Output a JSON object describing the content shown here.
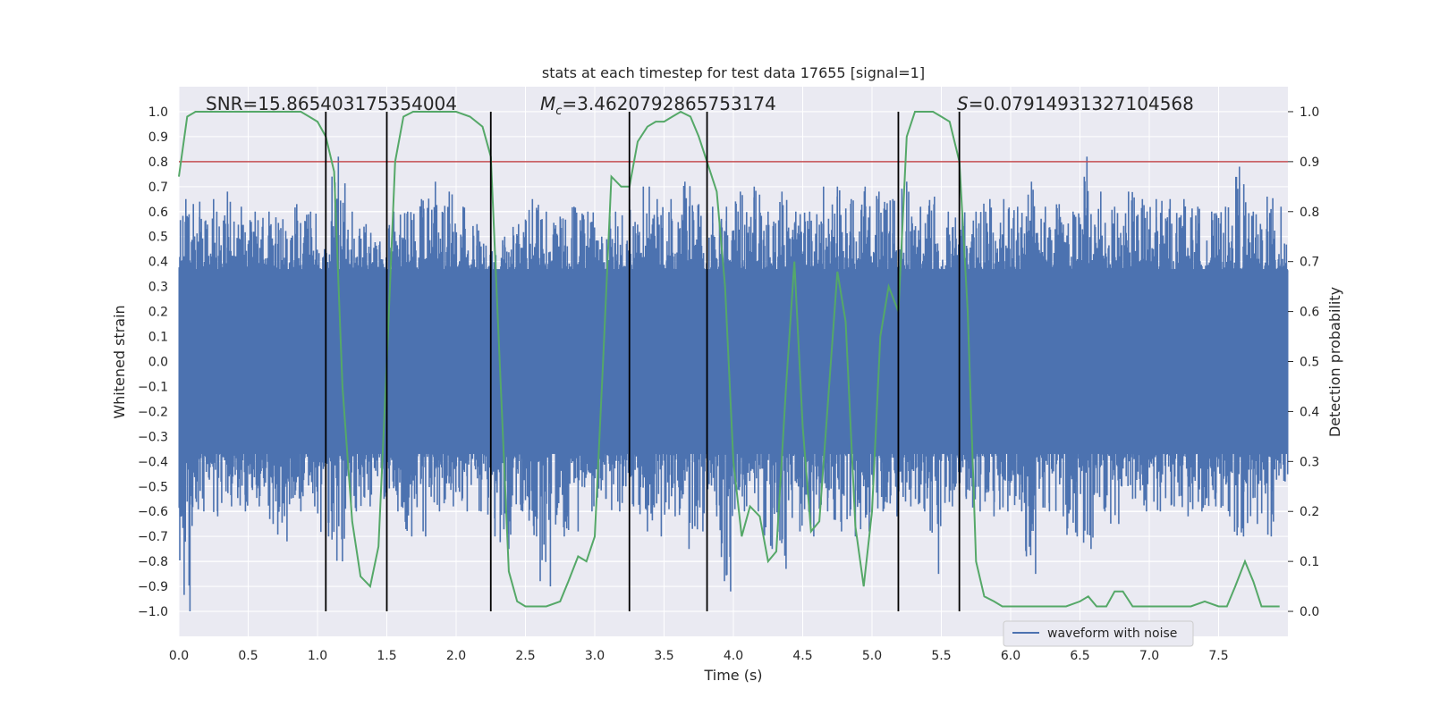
{
  "chart_data": {
    "type": "line",
    "title": "stats at each timestep for test data 17655 [signal=1]",
    "xlabel": "Time (s)",
    "ylabel": "Whitened strain",
    "y2label": "Detection probability",
    "xlim": [
      0,
      8
    ],
    "ylim": [
      -1.1,
      1.1
    ],
    "y2lim": [
      -0.05,
      1.05
    ],
    "xticks": [
      0.0,
      0.5,
      1.0,
      1.5,
      2.0,
      2.5,
      3.0,
      3.5,
      4.0,
      4.5,
      5.0,
      5.5,
      6.0,
      6.5,
      7.0,
      7.5
    ],
    "yticks": [
      -1.0,
      -0.9,
      -0.8,
      -0.7,
      -0.6,
      -0.5,
      -0.4,
      -0.3,
      -0.2,
      -0.1,
      0.0,
      0.1,
      0.2,
      0.3,
      0.4,
      0.5,
      0.6,
      0.7,
      0.8,
      0.9,
      1.0
    ],
    "y2ticks": [
      0.0,
      0.1,
      0.2,
      0.3,
      0.4,
      0.5,
      0.6,
      0.7,
      0.8,
      0.9,
      1.0
    ],
    "grid": true,
    "annotations": {
      "snr": "SNR=15.865403175354004",
      "mc_symbol": "M",
      "mc_sub": "c",
      "mc_value": "=3.4620792865753174",
      "s_symbol": "S",
      "s_value": "=0.07914931327104568"
    },
    "threshold": {
      "value": 0.9,
      "axis": "y2",
      "color": "#c44e52"
    },
    "vlines": [
      1.06,
      1.5,
      2.25,
      3.25,
      3.81,
      5.19,
      5.63
    ],
    "legend": {
      "label": "waveform with noise",
      "placement": "lower-right"
    },
    "series": [
      {
        "name": "waveform with noise",
        "axis": "y",
        "color": "#4c72b0",
        "band_max": [
          0.65,
          0.64,
          0.65,
          0.68,
          0.62,
          0.6,
          0.6,
          0.57,
          0.63,
          0.6,
          0.45,
          0.82,
          0.6,
          0.55,
          0.48,
          0.6,
          0.6,
          0.65,
          0.72,
          0.68,
          0.62,
          0.55,
          0.5,
          0.5,
          0.55,
          0.65,
          0.6,
          0.58,
          0.62,
          0.6,
          0.5,
          0.6,
          0.65,
          0.7,
          0.65,
          0.65,
          0.72,
          0.63,
          0.62,
          0.62,
          0.68,
          0.7,
          0.6,
          0.68,
          0.6,
          0.6,
          0.7,
          0.7,
          0.65,
          0.7,
          0.68,
          0.65,
          0.72,
          0.62,
          0.66,
          0.6,
          0.6,
          0.6,
          0.65,
          0.65,
          0.62,
          0.72,
          0.62,
          0.63,
          0.6,
          0.82,
          0.68,
          0.62,
          0.68,
          0.65,
          0.65,
          0.65,
          0.65,
          0.62,
          0.6,
          0.62,
          0.78,
          0.6,
          0.66,
          0.62
        ],
        "band_min": [
          -1.0,
          -0.6,
          -0.62,
          -0.58,
          -0.6,
          -0.58,
          -0.65,
          -0.72,
          -0.6,
          -0.58,
          -0.7,
          -0.8,
          -0.6,
          -0.58,
          -0.55,
          -0.6,
          -0.7,
          -0.7,
          -0.6,
          -0.58,
          -0.6,
          -0.6,
          -0.7,
          -0.75,
          -0.6,
          -0.7,
          -0.9,
          -0.7,
          -0.68,
          -0.6,
          -0.55,
          -0.6,
          -0.58,
          -0.68,
          -0.7,
          -0.62,
          -0.75,
          -0.68,
          -0.62,
          -0.92,
          -0.6,
          -0.6,
          -0.75,
          -0.83,
          -0.68,
          -0.7,
          -0.6,
          -0.68,
          -0.7,
          -0.68,
          -0.6,
          -0.62,
          -0.58,
          -0.6,
          -0.85,
          -0.58,
          -0.55,
          -0.6,
          -0.62,
          -0.6,
          -0.6,
          -0.85,
          -0.6,
          -0.62,
          -0.7,
          -0.75,
          -0.6,
          -0.65,
          -0.55,
          -0.6,
          -0.6,
          -0.58,
          -0.62,
          -0.6,
          -0.58,
          -0.62,
          -0.7,
          -0.65,
          -0.7,
          -0.48
        ]
      },
      {
        "name": "",
        "axis": "y2",
        "color": "#55a868",
        "x": [
          0.0,
          0.06,
          0.12,
          0.2,
          0.4,
          0.6,
          0.8,
          0.88,
          0.94,
          1.0,
          1.06,
          1.12,
          1.18,
          1.25,
          1.31,
          1.38,
          1.44,
          1.5,
          1.56,
          1.62,
          1.69,
          1.75,
          1.81,
          1.9,
          2.0,
          2.1,
          2.19,
          2.25,
          2.31,
          2.38,
          2.44,
          2.5,
          2.56,
          2.65,
          2.75,
          2.81,
          2.88,
          2.94,
          3.0,
          3.06,
          3.12,
          3.19,
          3.25,
          3.31,
          3.38,
          3.44,
          3.5,
          3.56,
          3.62,
          3.69,
          3.75,
          3.81,
          3.88,
          3.94,
          4.0,
          4.06,
          4.12,
          4.19,
          4.25,
          4.31,
          4.38,
          4.44,
          4.5,
          4.56,
          4.62,
          4.69,
          4.75,
          4.81,
          4.88,
          4.94,
          5.0,
          5.06,
          5.12,
          5.19,
          5.25,
          5.31,
          5.38,
          5.44,
          5.5,
          5.56,
          5.63,
          5.69,
          5.75,
          5.81,
          5.88,
          5.94,
          6.0,
          6.2,
          6.4,
          6.5,
          6.56,
          6.62,
          6.69,
          6.75,
          6.81,
          6.88,
          6.94,
          7.0,
          7.1,
          7.2,
          7.3,
          7.4,
          7.5,
          7.56,
          7.62,
          7.69,
          7.75,
          7.81,
          7.88,
          7.94
        ],
        "y": [
          0.87,
          0.99,
          1.0,
          1.0,
          1.0,
          1.0,
          1.0,
          1.0,
          0.99,
          0.98,
          0.95,
          0.88,
          0.45,
          0.18,
          0.07,
          0.05,
          0.13,
          0.5,
          0.9,
          0.99,
          1.0,
          1.0,
          1.0,
          1.0,
          1.0,
          0.99,
          0.97,
          0.91,
          0.53,
          0.08,
          0.02,
          0.01,
          0.01,
          0.01,
          0.02,
          0.06,
          0.11,
          0.1,
          0.15,
          0.5,
          0.87,
          0.85,
          0.85,
          0.94,
          0.97,
          0.98,
          0.98,
          0.99,
          1.0,
          0.99,
          0.95,
          0.9,
          0.84,
          0.65,
          0.3,
          0.15,
          0.21,
          0.19,
          0.1,
          0.12,
          0.45,
          0.7,
          0.37,
          0.16,
          0.18,
          0.45,
          0.68,
          0.58,
          0.17,
          0.05,
          0.2,
          0.55,
          0.65,
          0.6,
          0.95,
          1.0,
          1.0,
          1.0,
          0.99,
          0.98,
          0.9,
          0.6,
          0.1,
          0.03,
          0.02,
          0.01,
          0.01,
          0.01,
          0.01,
          0.02,
          0.03,
          0.01,
          0.01,
          0.04,
          0.04,
          0.01,
          0.01,
          0.01,
          0.01,
          0.01,
          0.01,
          0.02,
          0.01,
          0.01,
          0.05,
          0.1,
          0.06,
          0.01,
          0.01,
          0.01
        ]
      }
    ]
  }
}
